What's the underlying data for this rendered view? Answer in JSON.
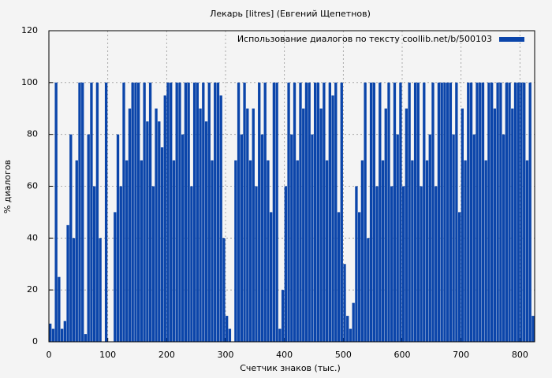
{
  "chart_data": {
    "type": "bar",
    "title": "Лекарь [litres] (Евгений Щепетнов)",
    "xlabel": "Счетчик знаков (тыс.)",
    "ylabel": "% диалогов",
    "legend_position": "upper right",
    "grid": true,
    "xlim": [
      0,
      825
    ],
    "ylim": [
      0,
      120
    ],
    "xticks": [
      0,
      100,
      200,
      300,
      400,
      500,
      600,
      700,
      800
    ],
    "yticks": [
      0,
      20,
      40,
      60,
      80,
      100,
      120
    ],
    "series": [
      {
        "name": "Использование диалогов по тексту  coollib.net/b/500103",
        "color": "#0b45aa",
        "x": [
          0,
          5,
          10,
          15,
          20,
          25,
          30,
          35,
          40,
          45,
          50,
          55,
          60,
          65,
          70,
          75,
          80,
          85,
          90,
          95,
          100,
          105,
          110,
          115,
          120,
          125,
          130,
          135,
          140,
          145,
          150,
          155,
          160,
          165,
          170,
          175,
          180,
          185,
          190,
          195,
          200,
          205,
          210,
          215,
          220,
          225,
          230,
          235,
          240,
          245,
          250,
          255,
          260,
          265,
          270,
          275,
          280,
          285,
          290,
          295,
          300,
          305,
          310,
          315,
          320,
          325,
          330,
          335,
          340,
          345,
          350,
          355,
          360,
          365,
          370,
          375,
          380,
          385,
          390,
          395,
          400,
          405,
          410,
          415,
          420,
          425,
          430,
          435,
          440,
          445,
          450,
          455,
          460,
          465,
          470,
          475,
          480,
          485,
          490,
          495,
          500,
          505,
          510,
          515,
          520,
          525,
          530,
          535,
          540,
          545,
          550,
          555,
          560,
          565,
          570,
          575,
          580,
          585,
          590,
          595,
          600,
          605,
          610,
          615,
          620,
          625,
          630,
          635,
          640,
          645,
          650,
          655,
          660,
          665,
          670,
          675,
          680,
          685,
          690,
          695,
          700,
          705,
          710,
          715,
          720,
          725,
          730,
          735,
          740,
          745,
          750,
          755,
          760,
          765,
          770,
          775,
          780,
          785,
          790,
          795,
          800,
          805,
          810,
          815,
          820
        ],
        "values": [
          7,
          5,
          100,
          25,
          5,
          8,
          45,
          80,
          40,
          70,
          100,
          100,
          3,
          80,
          100,
          60,
          100,
          40,
          0,
          100,
          0,
          0,
          50,
          80,
          60,
          100,
          70,
          90,
          100,
          100,
          100,
          70,
          100,
          85,
          100,
          60,
          90,
          85,
          75,
          95,
          100,
          100,
          70,
          100,
          100,
          80,
          100,
          100,
          60,
          100,
          100,
          90,
          100,
          85,
          100,
          70,
          100,
          100,
          95,
          40,
          10,
          5,
          0,
          70,
          100,
          80,
          100,
          90,
          70,
          90,
          60,
          100,
          80,
          100,
          70,
          50,
          100,
          100,
          5,
          20,
          60,
          100,
          80,
          100,
          70,
          100,
          90,
          100,
          100,
          80,
          100,
          100,
          90,
          100,
          70,
          100,
          95,
          100,
          50,
          100,
          30,
          10,
          5,
          15,
          60,
          50,
          70,
          100,
          40,
          100,
          100,
          60,
          100,
          70,
          90,
          100,
          60,
          100,
          80,
          100,
          60,
          90,
          100,
          70,
          100,
          100,
          60,
          100,
          70,
          80,
          100,
          60,
          100,
          100,
          100,
          100,
          100,
          80,
          100,
          50,
          90,
          70,
          100,
          100,
          80,
          100,
          100,
          100,
          70,
          100,
          100,
          90,
          100,
          100,
          80,
          100,
          100,
          90,
          100,
          100,
          100,
          100,
          70,
          100,
          10
        ]
      }
    ]
  }
}
